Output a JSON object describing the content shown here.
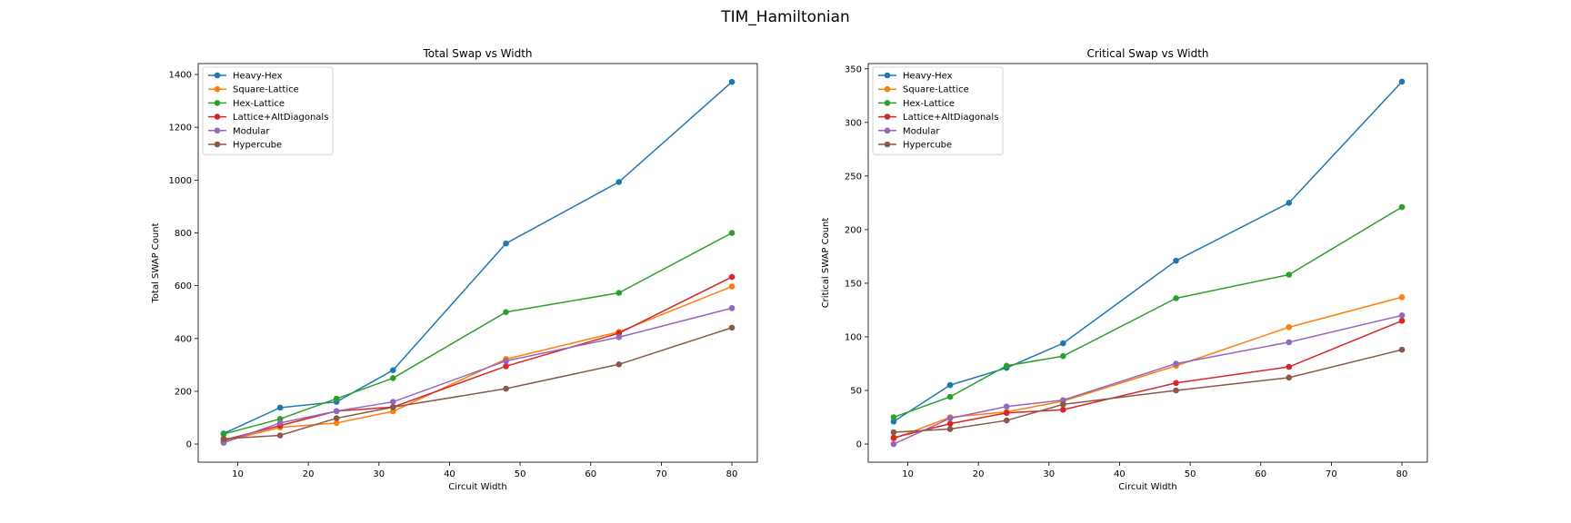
{
  "figure_title": "TIM_Hamiltonian",
  "chart_data": [
    {
      "type": "line",
      "title": "Total Swap vs Width",
      "xlabel": "Circuit Width",
      "ylabel": "Total SWAP Count",
      "x": [
        8,
        16,
        24,
        32,
        48,
        64,
        80
      ],
      "xlim": [
        4.4,
        83.6
      ],
      "ylim": [
        -68.5,
        1441.5
      ],
      "xticks": [
        10,
        20,
        30,
        40,
        50,
        60,
        70,
        80
      ],
      "yticks": [
        0,
        200,
        400,
        600,
        800,
        1000,
        1200,
        1400
      ],
      "legend_position": "upper-left",
      "grid": false,
      "series": [
        {
          "name": "Heavy-Hex",
          "color": "#1f77b4",
          "values": [
            40,
            138,
            160,
            280,
            760,
            993,
            1372
          ]
        },
        {
          "name": "Square-Lattice",
          "color": "#ff7f0e",
          "values": [
            10,
            63,
            80,
            124,
            322,
            425,
            597
          ]
        },
        {
          "name": "Hex-Lattice",
          "color": "#2ca02c",
          "values": [
            38,
            95,
            172,
            250,
            500,
            573,
            800
          ]
        },
        {
          "name": "Lattice+AltDiagonals",
          "color": "#d62728",
          "values": [
            15,
            70,
            125,
            140,
            295,
            420,
            633
          ]
        },
        {
          "name": "Modular",
          "color": "#9467bd",
          "values": [
            5,
            80,
            125,
            160,
            315,
            405,
            515
          ]
        },
        {
          "name": "Hypercube",
          "color": "#8c564b",
          "values": [
            20,
            33,
            98,
            140,
            210,
            302,
            441
          ]
        }
      ]
    },
    {
      "type": "line",
      "title": "Critical Swap vs Width",
      "xlabel": "Circuit Width",
      "ylabel": "Critical SWAP Count",
      "x": [
        8,
        16,
        24,
        32,
        48,
        64,
        80
      ],
      "xlim": [
        4.4,
        83.6
      ],
      "ylim": [
        -16.9,
        354.9
      ],
      "xticks": [
        10,
        20,
        30,
        40,
        50,
        60,
        70,
        80
      ],
      "yticks": [
        0,
        50,
        100,
        150,
        200,
        250,
        300,
        350
      ],
      "legend_position": "upper-left",
      "grid": false,
      "series": [
        {
          "name": "Heavy-Hex",
          "color": "#1f77b4",
          "values": [
            21,
            55,
            71,
            94,
            171,
            225,
            338
          ]
        },
        {
          "name": "Square-Lattice",
          "color": "#ff7f0e",
          "values": [
            5,
            25,
            30,
            40,
            73,
            109,
            137
          ]
        },
        {
          "name": "Hex-Lattice",
          "color": "#2ca02c",
          "values": [
            25,
            44,
            73,
            82,
            136,
            158,
            221
          ]
        },
        {
          "name": "Lattice+AltDiagonals",
          "color": "#d62728",
          "values": [
            6,
            19,
            29,
            32,
            57,
            72,
            115
          ]
        },
        {
          "name": "Modular",
          "color": "#9467bd",
          "values": [
            0,
            24,
            35,
            41,
            75,
            95,
            120
          ]
        },
        {
          "name": "Hypercube",
          "color": "#8c564b",
          "values": [
            11,
            14,
            22,
            37,
            50,
            62,
            88
          ]
        }
      ]
    }
  ]
}
